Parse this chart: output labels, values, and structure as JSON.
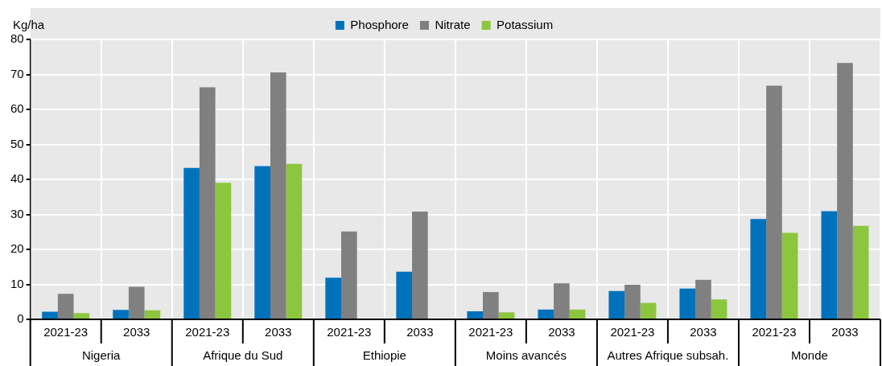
{
  "chart_data": {
    "type": "bar",
    "ylabel": "Kg/ha",
    "categories": [
      "2021-23",
      "2033",
      "2021-23",
      "2033",
      "2021-23",
      "2033",
      "2021-23",
      "2033",
      "2021-23",
      "2033",
      "2021-23",
      "2033"
    ],
    "series": [
      {
        "name": "Phosphore",
        "color": "#0072bc",
        "values": [
          2.2,
          2.7,
          43.3,
          43.8,
          11.9,
          13.6,
          2.3,
          2.8,
          8.1,
          8.8,
          28.7,
          30.9
        ]
      },
      {
        "name": "Nitrate",
        "color": "#808080",
        "values": [
          7.3,
          9.3,
          66.3,
          70.6,
          25.1,
          30.8,
          7.8,
          10.3,
          9.9,
          11.3,
          66.8,
          73.3
        ]
      },
      {
        "name": "Potassium",
        "color": "#8cc63f",
        "values": [
          1.8,
          2.6,
          39.0,
          44.4,
          null,
          null,
          2.0,
          2.8,
          4.7,
          5.7,
          24.7,
          26.7
        ]
      }
    ],
    "annotations": [
      "Nigeria",
      "Afrique du Sud",
      "Ethiopie",
      "Moins avancés",
      "Autres Afrique subsah.",
      "Monde"
    ],
    "ylim": [
      0,
      80
    ],
    "yticks": [
      0,
      10,
      20,
      30,
      40,
      50,
      60,
      70,
      80
    ],
    "grid": true,
    "legend": "top"
  }
}
